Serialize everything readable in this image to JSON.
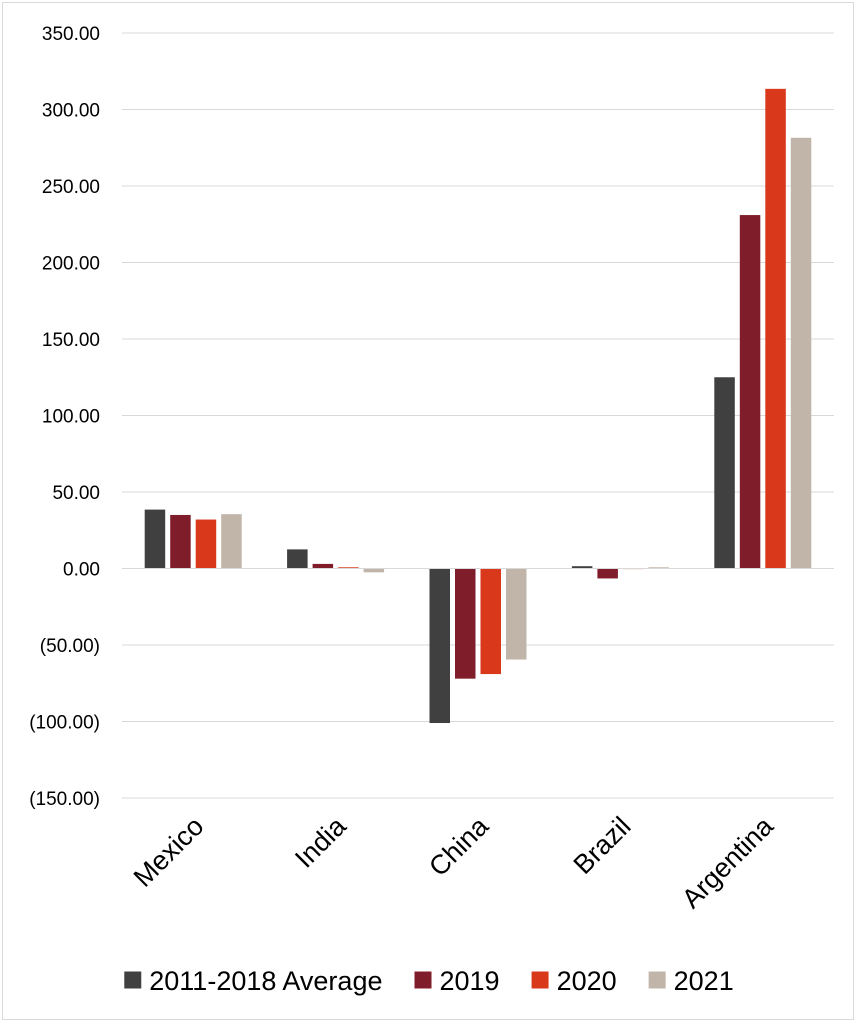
{
  "chart_data": {
    "type": "bar",
    "categories": [
      "Mexico",
      "India",
      "China",
      "Brazil",
      "Argentina"
    ],
    "series": [
      {
        "name": "2011-2018 Average",
        "color": "#404040",
        "values": [
          38.5,
          12.5,
          -101,
          1.5,
          125
        ]
      },
      {
        "name": "2019",
        "color": "#7f1d2b",
        "values": [
          35,
          3,
          -72,
          -6.5,
          231
        ]
      },
      {
        "name": "2020",
        "color": "#d9391a",
        "values": [
          32,
          0.8,
          -69,
          0,
          313.5
        ]
      },
      {
        "name": "2021",
        "color": "#c0b5a8",
        "values": [
          35.5,
          -2.5,
          -59.5,
          0.8,
          281.5
        ]
      }
    ],
    "yticks": [
      350,
      300,
      250,
      200,
      150,
      100,
      50,
      0,
      -50,
      -100,
      -150
    ],
    "ytick_labels": [
      "350.00",
      "300.00",
      "250.00",
      "200.00",
      "150.00",
      "100.00",
      "50.00",
      "0.00",
      "(50.00)",
      "(100.00)",
      "(150.00)"
    ],
    "ylim": [
      -150,
      350
    ],
    "title": "",
    "xlabel": "",
    "ylabel": "",
    "grid": true,
    "legend_position": "bottom"
  }
}
